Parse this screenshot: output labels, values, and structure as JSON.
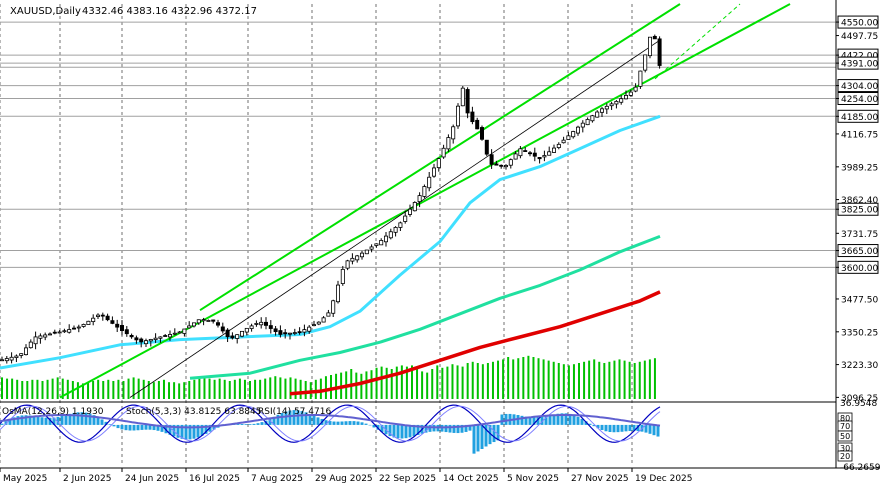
{
  "header": {
    "symbol": "XAUUSD,Daily",
    "ohlc": "4332.46 4383.16 4322.96 4372.17"
  },
  "oscillator_header": {
    "osma": "OsMA(12,26,9) 1.1930",
    "stoch": "Stoch(5,3,3) 43.8125 63.8845",
    "rsi": "RSI(14) 57.4716"
  },
  "colors": {
    "candles": "#000000",
    "volume": "#00c000",
    "ma_fast": "#40e0ff",
    "ma_mid": "#20e0a0",
    "ma_slow": "#e00000",
    "channel": "#00e000",
    "level_lines": "#a0a0a0",
    "osma": "#20a0e0",
    "stoch_main": "#0000c0",
    "stoch_signal": "#8080ff",
    "rsi": "#6060d0"
  },
  "chart_data": [
    {
      "type": "candlestick",
      "symbol": "XAUUSD",
      "timeframe": "Daily",
      "ylim": [
        3090,
        4620
      ],
      "y_ticks": [
        4550.0,
        4497.75,
        4422.0,
        4391.0,
        4304.0,
        4254.0,
        4185.0,
        4116.75,
        3989.25,
        3862.4,
        3825.0,
        3731.75,
        3665.0,
        3600.0,
        3477.5,
        3350.25,
        3223.3,
        3096.25
      ],
      "level_lines": [
        4550.0,
        4422.0,
        4391.0,
        4375.0,
        4304.0,
        4254.0,
        4185.0,
        3825.0,
        3665.0,
        3600.0
      ],
      "boxed_levels": [
        4550.0,
        4422.0,
        4391.0,
        4304.0,
        4254.0,
        4185.0,
        3825.0,
        3665.0,
        3600.0
      ],
      "x_labels": [
        "May 2025",
        "2 Jun 2025",
        "24 Jun 2025",
        "16 Jul 2025",
        "7 Aug 2025",
        "29 Aug 2025",
        "22 Sep 2025",
        "14 Oct 2025",
        "5 Nov 2025",
        "27 Nov 2025",
        "19 Dec 2025"
      ],
      "close_path": [
        [
          0,
          3240
        ],
        [
          20,
          3260
        ],
        [
          35,
          3330
        ],
        [
          60,
          3350
        ],
        [
          80,
          3370
        ],
        [
          100,
          3420
        ],
        [
          120,
          3360
        ],
        [
          140,
          3310
        ],
        [
          160,
          3330
        ],
        [
          180,
          3350
        ],
        [
          200,
          3400
        ],
        [
          215,
          3390
        ],
        [
          230,
          3320
        ],
        [
          245,
          3360
        ],
        [
          260,
          3390
        ],
        [
          280,
          3340
        ],
        [
          300,
          3350
        ],
        [
          320,
          3390
        ],
        [
          330,
          3430
        ],
        [
          345,
          3620
        ],
        [
          360,
          3650
        ],
        [
          380,
          3700
        ],
        [
          400,
          3770
        ],
        [
          420,
          3880
        ],
        [
          440,
          4030
        ],
        [
          455,
          4160
        ],
        [
          462,
          4310
        ],
        [
          468,
          4190
        ],
        [
          480,
          4120
        ],
        [
          490,
          4000
        ],
        [
          505,
          3990
        ],
        [
          520,
          4060
        ],
        [
          540,
          4020
        ],
        [
          560,
          4080
        ],
        [
          580,
          4150
        ],
        [
          600,
          4210
        ],
        [
          620,
          4250
        ],
        [
          635,
          4290
        ],
        [
          645,
          4420
        ],
        [
          652,
          4520
        ],
        [
          656,
          4470
        ],
        [
          660,
          4372
        ]
      ],
      "ma_fast": [
        [
          0,
          3210
        ],
        [
          60,
          3250
        ],
        [
          120,
          3300
        ],
        [
          180,
          3320
        ],
        [
          240,
          3330
        ],
        [
          300,
          3340
        ],
        [
          330,
          3370
        ],
        [
          360,
          3430
        ],
        [
          400,
          3570
        ],
        [
          440,
          3700
        ],
        [
          470,
          3850
        ],
        [
          500,
          3940
        ],
        [
          540,
          3990
        ],
        [
          580,
          4060
        ],
        [
          620,
          4130
        ],
        [
          660,
          4185
        ]
      ],
      "ma_mid": [
        [
          190,
          3170
        ],
        [
          250,
          3190
        ],
        [
          300,
          3240
        ],
        [
          340,
          3270
        ],
        [
          380,
          3310
        ],
        [
          420,
          3360
        ],
        [
          460,
          3420
        ],
        [
          500,
          3480
        ],
        [
          540,
          3530
        ],
        [
          580,
          3590
        ],
        [
          620,
          3660
        ],
        [
          660,
          3720
        ]
      ],
      "ma_slow": [
        [
          290,
          3110
        ],
        [
          320,
          3120
        ],
        [
          360,
          3150
        ],
        [
          400,
          3190
        ],
        [
          440,
          3240
        ],
        [
          480,
          3290
        ],
        [
          520,
          3330
        ],
        [
          560,
          3370
        ],
        [
          600,
          3420
        ],
        [
          640,
          3470
        ],
        [
          660,
          3505
        ]
      ],
      "channel_upper": [
        [
          200,
          3434
        ],
        [
          680,
          4620
        ]
      ],
      "channel_lower": [
        [
          60,
          3096
        ],
        [
          790,
          4620
        ]
      ],
      "mid_line": [
        [
          130,
          3096
        ],
        [
          660,
          4480
        ]
      ],
      "forecast_line": [
        [
          655,
          4330
        ],
        [
          740,
          4620
        ]
      ],
      "volume": [
        18,
        17,
        17,
        16,
        15,
        15,
        16,
        16,
        15,
        16,
        17,
        18,
        17,
        16,
        15,
        14,
        13,
        14,
        15,
        16,
        15,
        16,
        15,
        16,
        15,
        17,
        18,
        17,
        16,
        15,
        14,
        15,
        16,
        14,
        14,
        13,
        14,
        15,
        16,
        17,
        18,
        17,
        16,
        17,
        16,
        15,
        16,
        17,
        16,
        15,
        16,
        16,
        17,
        18,
        19,
        18,
        17,
        18,
        17,
        16,
        15,
        14,
        16,
        17,
        19,
        20,
        21,
        22,
        23,
        25,
        22,
        21,
        23,
        24,
        26,
        27,
        26,
        25,
        27,
        28,
        27,
        28,
        27,
        23,
        22,
        25,
        28,
        26,
        27,
        29,
        28,
        27,
        30,
        31,
        30,
        29,
        30,
        31,
        32,
        33,
        35,
        33,
        34,
        35,
        36,
        35,
        34,
        33,
        32,
        31,
        30,
        29,
        28,
        29,
        30,
        31,
        32,
        33,
        31,
        30,
        31,
        32,
        33,
        32,
        31,
        30,
        31,
        32,
        33,
        34
      ]
    },
    {
      "type": "oscillator",
      "indicators": [
        "OsMA(12,26,9)",
        "Stoch(5,3,3)",
        "RSI(14)"
      ],
      "ylim": [
        -66.2659,
        36.9548
      ],
      "y_ticks": [
        36.9548,
        -66.2659
      ],
      "level_labels": [
        "80",
        "70",
        "50",
        "30",
        "20"
      ]
    }
  ]
}
